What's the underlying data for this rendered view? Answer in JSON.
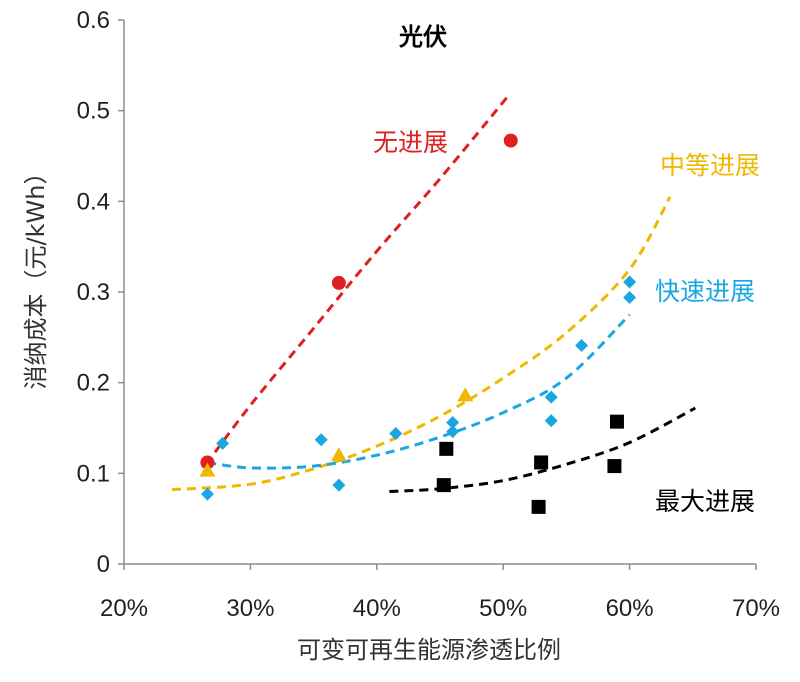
{
  "chart_data": {
    "type": "scatter",
    "title": "光伏",
    "xlabel": "可变可再生能源渗透比例",
    "ylabel": "消纳成本（元/kWh）",
    "xlim": [
      0.2,
      0.7
    ],
    "ylim": [
      0,
      0.6
    ],
    "x_ticks": [
      0.2,
      0.3,
      0.4,
      0.5,
      0.6,
      0.7
    ],
    "x_tick_labels": [
      "20%",
      "30%",
      "40%",
      "50%",
      "60%",
      "70%"
    ],
    "y_ticks": [
      0,
      0.1,
      0.2,
      0.3,
      0.4,
      0.5,
      0.6
    ],
    "y_tick_labels": [
      "0",
      "0.1",
      "0.2",
      "0.3",
      "0.4",
      "0.5",
      "0.6"
    ],
    "grid": false,
    "series": [
      {
        "name": "无进展",
        "color": "#e0201f",
        "marker": "circle",
        "points": [
          [
            0.266,
            0.112
          ],
          [
            0.37,
            0.31
          ],
          [
            0.506,
            0.467
          ]
        ],
        "trend": [
          [
            0.265,
            0.11
          ],
          [
            0.3,
            0.175
          ],
          [
            0.35,
            0.26
          ],
          [
            0.4,
            0.345
          ],
          [
            0.45,
            0.425
          ],
          [
            0.505,
            0.518
          ]
        ]
      },
      {
        "name": "中等进展",
        "color": "#f1b800",
        "marker": "triangle",
        "points": [
          [
            0.266,
            0.103
          ],
          [
            0.37,
            0.12
          ],
          [
            0.47,
            0.186
          ]
        ],
        "trend": [
          [
            0.238,
            0.082
          ],
          [
            0.3,
            0.088
          ],
          [
            0.35,
            0.105
          ],
          [
            0.4,
            0.13
          ],
          [
            0.45,
            0.163
          ],
          [
            0.5,
            0.205
          ],
          [
            0.55,
            0.255
          ],
          [
            0.6,
            0.325
          ],
          [
            0.632,
            0.405
          ]
        ]
      },
      {
        "name": "快速进展",
        "color": "#1aa7e1",
        "marker": "diamond",
        "points": [
          [
            0.266,
            0.077
          ],
          [
            0.278,
            0.133
          ],
          [
            0.356,
            0.137
          ],
          [
            0.37,
            0.087
          ],
          [
            0.415,
            0.144
          ],
          [
            0.46,
            0.156
          ],
          [
            0.46,
            0.146
          ],
          [
            0.538,
            0.184
          ],
          [
            0.538,
            0.158
          ],
          [
            0.562,
            0.241
          ],
          [
            0.6,
            0.311
          ],
          [
            0.6,
            0.294
          ]
        ],
        "trend": [
          [
            0.266,
            0.112
          ],
          [
            0.3,
            0.106
          ],
          [
            0.35,
            0.108
          ],
          [
            0.4,
            0.12
          ],
          [
            0.45,
            0.14
          ],
          [
            0.5,
            0.167
          ],
          [
            0.55,
            0.205
          ],
          [
            0.6,
            0.275
          ]
        ]
      },
      {
        "name": "最大进展",
        "color": "#000000",
        "marker": "square",
        "points": [
          [
            0.453,
            0.087
          ],
          [
            0.455,
            0.127
          ],
          [
            0.528,
            0.063
          ],
          [
            0.53,
            0.112
          ],
          [
            0.588,
            0.108
          ],
          [
            0.59,
            0.157
          ]
        ],
        "trend": [
          [
            0.41,
            0.08
          ],
          [
            0.45,
            0.083
          ],
          [
            0.5,
            0.092
          ],
          [
            0.55,
            0.11
          ],
          [
            0.6,
            0.134
          ],
          [
            0.652,
            0.172
          ]
        ]
      }
    ]
  }
}
